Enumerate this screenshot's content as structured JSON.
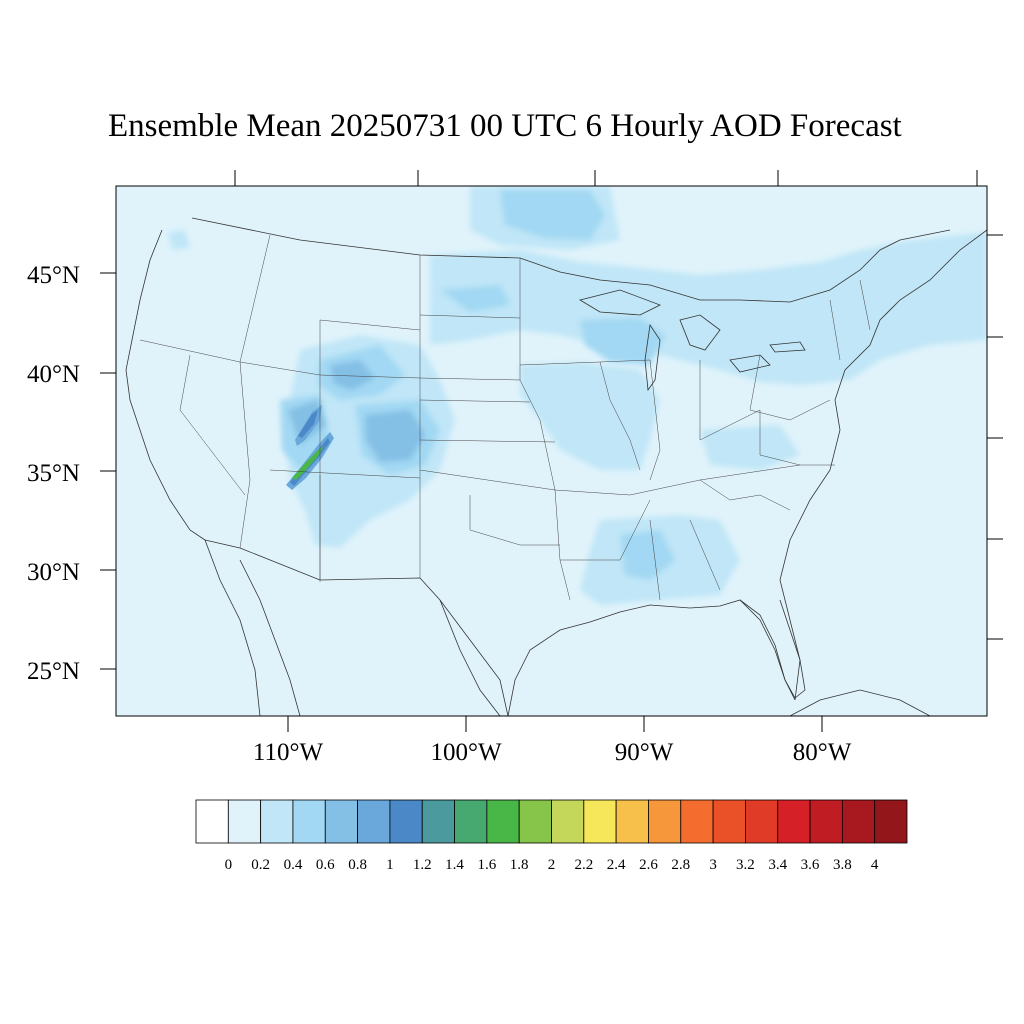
{
  "title": "Ensemble Mean 20250731 00 UTC 6 Hourly AOD Forecast",
  "map": {
    "lon_labels": [
      "110°W",
      "100°W",
      "90°W",
      "80°W"
    ],
    "lat_labels": [
      "45°N",
      "40°N",
      "35°N",
      "30°N",
      "25°N"
    ],
    "background_color": "#e0f3fb"
  },
  "colorbar": {
    "labels": [
      "0",
      "0.2",
      "0.4",
      "0.6",
      "0.8",
      "1",
      "1.2",
      "1.4",
      "1.6",
      "1.8",
      "2",
      "2.2",
      "2.4",
      "2.6",
      "2.8",
      "3",
      "3.2",
      "3.4",
      "3.6",
      "3.8",
      "4"
    ],
    "colors": [
      "#ffffff",
      "#e0f3fb",
      "#c0e6f7",
      "#a2d8f3",
      "#84bfe5",
      "#6aa7da",
      "#4b88c8",
      "#4a9a9e",
      "#47a870",
      "#49b747",
      "#86c54a",
      "#c4d75a",
      "#f6e75a",
      "#f7c04a",
      "#f7973c",
      "#f46d2f",
      "#ea5128",
      "#e03b27",
      "#d62027",
      "#bf1c24",
      "#a8181f",
      "#93161b"
    ]
  }
}
